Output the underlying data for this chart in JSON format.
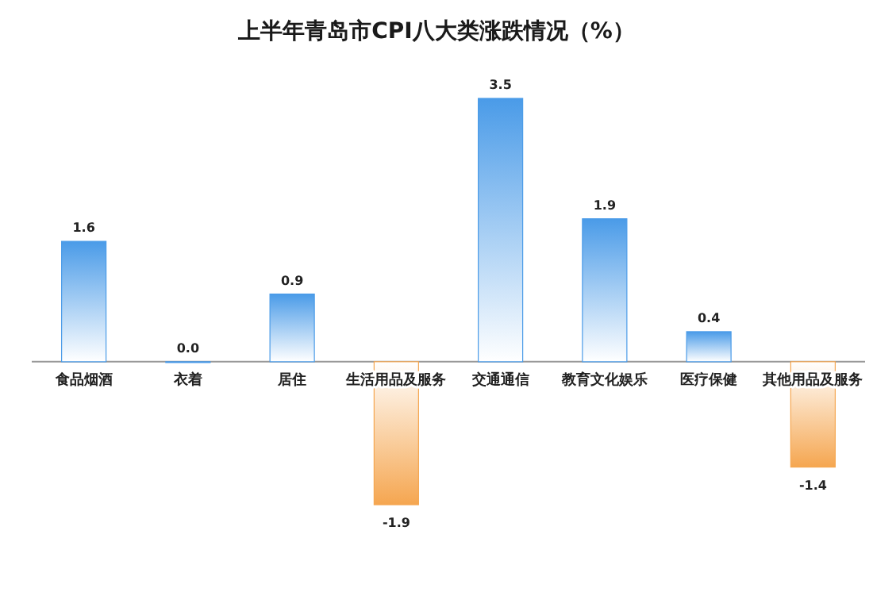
{
  "chart_data": {
    "type": "bar",
    "title": "上半年青岛市CPI八大类涨跌情况（%）",
    "categories": [
      "食品烟酒",
      "衣着",
      "居住",
      "生活用品及服务",
      "交通通信",
      "教育文化娱乐",
      "医疗保健",
      "其他用品及服务"
    ],
    "values": [
      1.6,
      0.0,
      0.9,
      -1.9,
      3.5,
      1.9,
      0.4,
      -1.4
    ],
    "colors": [
      "#4a9be8",
      "#4a9be8",
      "#4a9be8",
      "#f5a650",
      "#4a9be8",
      "#4a9be8",
      "#4a9be8",
      "#f5a650"
    ],
    "value_labels": [
      "1.6",
      "0.0",
      "0.9",
      "-1.9",
      "3.5",
      "1.9",
      "0.4",
      "-1.4"
    ]
  }
}
